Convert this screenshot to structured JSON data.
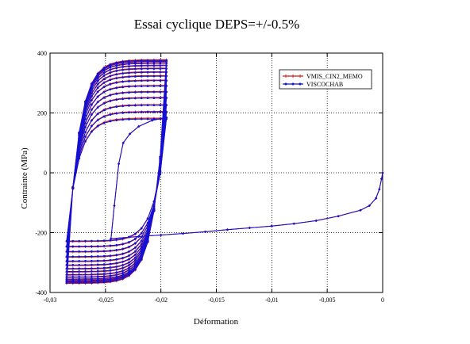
{
  "chart_data": {
    "type": "line",
    "title": "Essai cyclique DEPS=+/-0.5%",
    "xlabel": "Déformation",
    "ylabel": "Contrainte (MPa)",
    "xlim": [
      -0.03,
      0
    ],
    "ylim": [
      -400,
      400
    ],
    "x_tick_labels": [
      "-0,03",
      "-0,025",
      "-0,02",
      "-0,015",
      "-0,01",
      "-0,005",
      "0"
    ],
    "y_tick_labels": [
      "-400",
      "-200",
      "0",
      "200",
      "400"
    ],
    "grid": true,
    "legend_position": "top-right",
    "series": [
      {
        "name": "VMIS_CIN2_MEMO",
        "color": "#d01818",
        "marker": "plus",
        "initial_path": [
          [
            0,
            0
          ],
          [
            -0.0001,
            -20
          ],
          [
            -0.0003,
            -55
          ],
          [
            -0.0006,
            -85
          ],
          [
            -0.0012,
            -110
          ],
          [
            -0.002,
            -125
          ],
          [
            -0.004,
            -145
          ],
          [
            -0.006,
            -160
          ],
          [
            -0.008,
            -170
          ],
          [
            -0.01,
            -178
          ],
          [
            -0.012,
            -184
          ],
          [
            -0.014,
            -190
          ],
          [
            -0.016,
            -197
          ],
          [
            -0.018,
            -203
          ],
          [
            -0.02,
            -208
          ],
          [
            -0.022,
            -213
          ],
          [
            -0.0245,
            -220
          ]
        ],
        "first_reversal_path": [
          [
            -0.0245,
            -220
          ],
          [
            -0.0242,
            -110
          ],
          [
            -0.0238,
            30
          ],
          [
            -0.0234,
            100
          ],
          [
            -0.0228,
            130
          ],
          [
            -0.022,
            155
          ],
          [
            -0.0208,
            175
          ],
          [
            -0.0195,
            185
          ]
        ],
        "cycles": {
          "eps_min": -0.0285,
          "eps_max": -0.0195,
          "top_stress": [
            183,
            205,
            228,
            252,
            272,
            292,
            310,
            325,
            338,
            350,
            360,
            368,
            374,
            378
          ],
          "bottom_stress": [
            -230,
            -248,
            -265,
            -282,
            -297,
            -310,
            -322,
            -332,
            -342,
            -350,
            -357,
            -362,
            -366,
            -370
          ]
        }
      },
      {
        "name": "VISCOCHAB",
        "color": "#1010d8",
        "marker": "dot",
        "initial_path": [
          [
            0,
            0
          ],
          [
            -0.0001,
            -20
          ],
          [
            -0.0003,
            -55
          ],
          [
            -0.0006,
            -85
          ],
          [
            -0.0012,
            -110
          ],
          [
            -0.002,
            -125
          ],
          [
            -0.004,
            -145
          ],
          [
            -0.006,
            -160
          ],
          [
            -0.008,
            -170
          ],
          [
            -0.01,
            -178
          ],
          [
            -0.012,
            -184
          ],
          [
            -0.014,
            -190
          ],
          [
            -0.016,
            -197
          ],
          [
            -0.018,
            -203
          ],
          [
            -0.02,
            -208
          ],
          [
            -0.022,
            -213
          ],
          [
            -0.0245,
            -220
          ]
        ],
        "first_reversal_path": [
          [
            -0.0245,
            -220
          ],
          [
            -0.0242,
            -110
          ],
          [
            -0.0238,
            30
          ],
          [
            -0.0234,
            100
          ],
          [
            -0.0228,
            130
          ],
          [
            -0.022,
            155
          ],
          [
            -0.0208,
            175
          ],
          [
            -0.0195,
            185
          ]
        ],
        "cycles": {
          "eps_min": -0.0285,
          "eps_max": -0.0195,
          "top_stress": [
            180,
            203,
            226,
            250,
            270,
            290,
            308,
            323,
            336,
            348,
            358,
            366,
            372,
            376
          ],
          "bottom_stress": [
            -228,
            -246,
            -263,
            -280,
            -295,
            -308,
            -320,
            -330,
            -340,
            -348,
            -355,
            -360,
            -364,
            -368
          ]
        }
      }
    ]
  }
}
